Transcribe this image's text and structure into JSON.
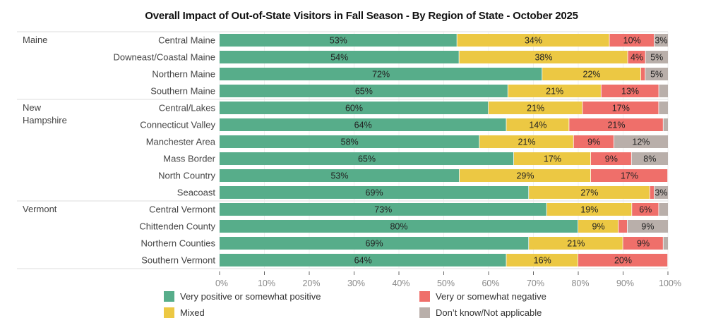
{
  "chart_data": {
    "type": "bar",
    "orientation": "horizontal-stacked-100",
    "title": "Overall Impact of Out-of-State Visitors in Fall Season - By Region of State - October 2025",
    "xlabel": "",
    "ylabel": "",
    "xlim": [
      0,
      100
    ],
    "x_ticks": [
      "0%",
      "10%",
      "20%",
      "30%",
      "40%",
      "50%",
      "60%",
      "70%",
      "80%",
      "90%",
      "100%"
    ],
    "grid": true,
    "legend_position": "bottom",
    "series": [
      {
        "name": "Very positive or somewhat positive",
        "color": "#57ad8a"
      },
      {
        "name": "Mixed",
        "color": "#ecc843"
      },
      {
        "name": "Very or somewhat negative",
        "color": "#ef6f6a"
      },
      {
        "name": "Don’t know/Not applicable",
        "color": "#b9afaa"
      }
    ],
    "groups": [
      {
        "name": "Maine",
        "rows": [
          {
            "region": "Central Maine",
            "values": [
              53,
              34,
              10,
              3
            ],
            "labels": [
              "53%",
              "34%",
              "10%",
              "3%"
            ]
          },
          {
            "region": "Downeast/Coastal Maine",
            "values": [
              54,
              38,
              4,
              5
            ],
            "labels": [
              "54%",
              "38%",
              "4%",
              "5%"
            ]
          },
          {
            "region": "Northern Maine",
            "values": [
              72,
              22,
              1,
              5
            ],
            "labels": [
              "72%",
              "22%",
              "",
              "5%"
            ]
          },
          {
            "region": "Southern Maine",
            "values": [
              65,
              21,
              13,
              2
            ],
            "labels": [
              "65%",
              "21%",
              "13%",
              ""
            ]
          }
        ]
      },
      {
        "name": "New Hampshire",
        "rows": [
          {
            "region": "Central/Lakes",
            "values": [
              60,
              21,
              17,
              2
            ],
            "labels": [
              "60%",
              "21%",
              "17%",
              ""
            ]
          },
          {
            "region": "Connecticut Valley",
            "values": [
              64,
              14,
              21,
              1
            ],
            "labels": [
              "64%",
              "14%",
              "21%",
              ""
            ]
          },
          {
            "region": "Manchester Area",
            "values": [
              58,
              21,
              9,
              12
            ],
            "labels": [
              "58%",
              "21%",
              "9%",
              "12%"
            ]
          },
          {
            "region": "Mass Border",
            "values": [
              65,
              17,
              9,
              8
            ],
            "labels": [
              "65%",
              "17%",
              "9%",
              "8%"
            ]
          },
          {
            "region": "North Country",
            "values": [
              53,
              29,
              17,
              0
            ],
            "labels": [
              "53%",
              "29%",
              "17%",
              ""
            ]
          },
          {
            "region": "Seacoast",
            "values": [
              69,
              27,
              1,
              3
            ],
            "labels": [
              "69%",
              "27%",
              "",
              "3%"
            ]
          }
        ]
      },
      {
        "name": "Vermont",
        "rows": [
          {
            "region": "Central Vermont",
            "values": [
              73,
              19,
              6,
              2
            ],
            "labels": [
              "73%",
              "19%",
              "6%",
              ""
            ]
          },
          {
            "region": "Chittenden County",
            "values": [
              80,
              9,
              2,
              9
            ],
            "labels": [
              "80%",
              "9%",
              "",
              "9%"
            ]
          },
          {
            "region": "Northern Counties",
            "values": [
              69,
              21,
              9,
              1
            ],
            "labels": [
              "69%",
              "21%",
              "9%",
              ""
            ]
          },
          {
            "region": "Southern Vermont",
            "values": [
              64,
              16,
              20,
              0
            ],
            "labels": [
              "64%",
              "16%",
              "20%",
              ""
            ]
          }
        ]
      }
    ]
  }
}
